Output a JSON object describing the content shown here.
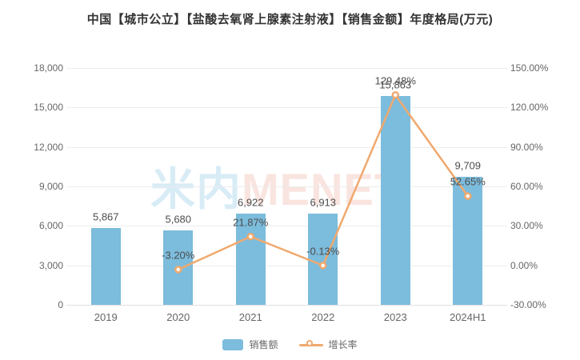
{
  "title": "中国【城市公立】【盐酸去氧肾上腺素注射液】【销售金额】年度格局(万元)",
  "watermark": {
    "text_cn": "米内",
    "text_en": "MENET"
  },
  "colors": {
    "bar": "#7cbcdc",
    "line": "#f0a96f",
    "title_text": "#333333",
    "axis_text": "#666666",
    "label_text": "#4d4d4d",
    "grid": "#ececec",
    "axis_line": "#e0e0e0",
    "watermark_cn": "#d8ecf6",
    "watermark_en": "#f9e4e0",
    "background": "#ffffff"
  },
  "legend": {
    "items": [
      {
        "label": "销售额",
        "type": "bar"
      },
      {
        "label": "增长率",
        "type": "line"
      }
    ]
  },
  "chart_data": {
    "type": "bar+line",
    "title": "中国【城市公立】【盐酸去氧肾上腺素注射液】【销售金额】年度格局(万元)",
    "categories": [
      "2019",
      "2020",
      "2021",
      "2022",
      "2023",
      "2024H1"
    ],
    "series": [
      {
        "name": "销售额",
        "type": "bar",
        "yaxis": "left",
        "values": [
          5867,
          5680,
          6922,
          6913,
          15863,
          9709
        ],
        "labels": [
          "5,867",
          "5,680",
          "6,922",
          "6,913",
          "15,863",
          "9,709"
        ]
      },
      {
        "name": "增长率",
        "type": "line",
        "yaxis": "right",
        "values": [
          null,
          -3.2,
          21.87,
          -0.13,
          129.48,
          52.65
        ],
        "labels": [
          "",
          "-3.20%",
          "21.87%",
          "-0.13%",
          "129.48%",
          "52.65%"
        ]
      }
    ],
    "axes": {
      "y_left": {
        "min": 0,
        "max": 18000,
        "step": 3000,
        "tick_labels": [
          "0",
          "3,000",
          "6,000",
          "9,000",
          "12,000",
          "15,000",
          "18,000"
        ]
      },
      "y_right": {
        "min": -30,
        "max": 150,
        "step": 30,
        "tick_labels": [
          "-30.00%",
          "0.00%",
          "30.00%",
          "60.00%",
          "90.00%",
          "120.00%",
          "150.00%"
        ]
      }
    },
    "grid": true,
    "legend_position": "bottom"
  }
}
